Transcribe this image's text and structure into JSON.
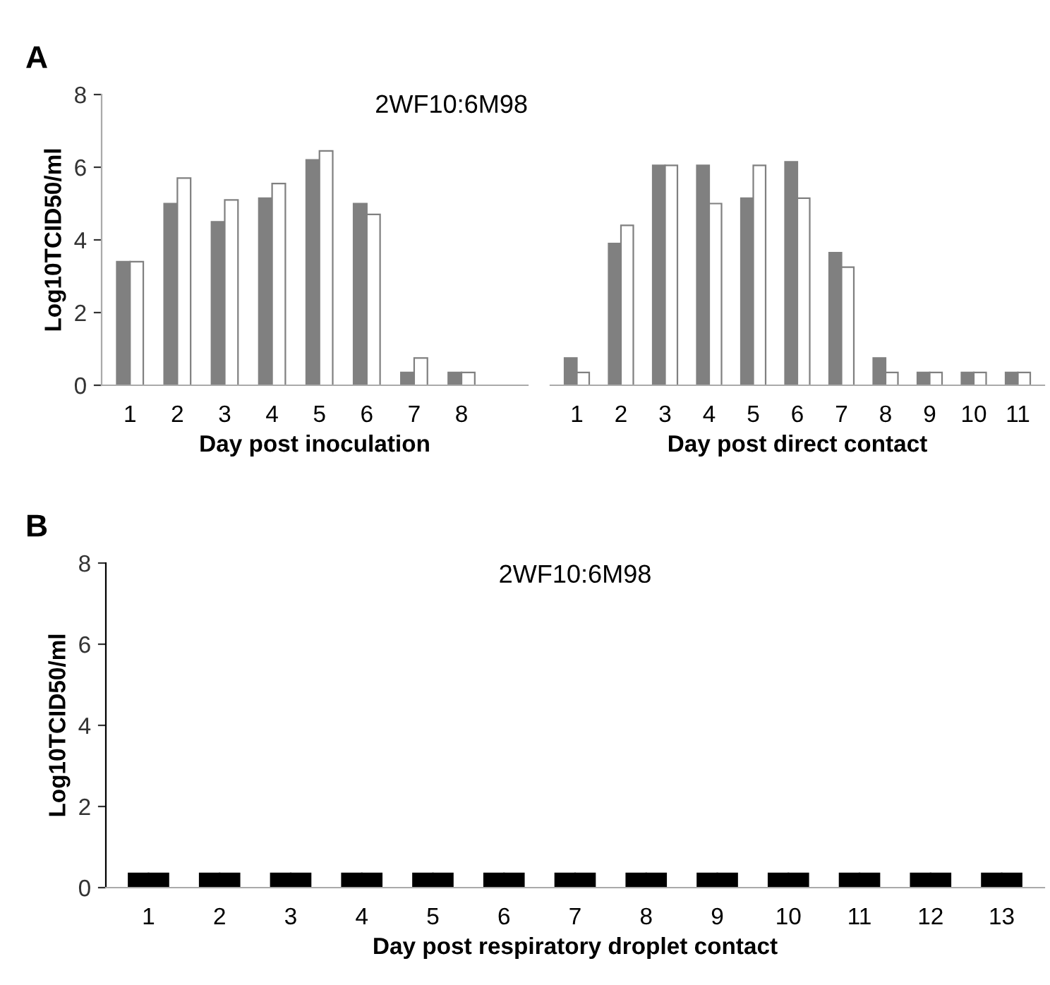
{
  "chart_data": [
    {
      "type": "bar",
      "title": "2WF10:6M98",
      "xlabel": "Day post inoculation",
      "ylabel": "Log10TCID50/ml",
      "annotations": [
        "A"
      ],
      "categories": [
        "1",
        "2",
        "3",
        "4",
        "5",
        "6",
        "7",
        "8"
      ],
      "series": [
        {
          "color": "#808080",
          "values": [
            3.4,
            5.0,
            4.5,
            5.15,
            6.2,
            5.0,
            0.35,
            0.35
          ]
        },
        {
          "color": "#ffffff",
          "values": [
            3.4,
            5.7,
            5.1,
            5.55,
            6.45,
            4.7,
            0.75,
            0.35
          ]
        }
      ],
      "ylim": [
        0,
        8
      ],
      "yticks": [
        0,
        2,
        4,
        6,
        8
      ]
    },
    {
      "type": "bar",
      "xlabel": "Day post direct contact",
      "categories": [
        "1",
        "2",
        "3",
        "4",
        "5",
        "6",
        "7",
        "8",
        "9",
        "10",
        "11"
      ],
      "series": [
        {
          "color": "#808080",
          "values": [
            0.75,
            3.9,
            6.05,
            6.05,
            5.15,
            6.15,
            3.65,
            0.75,
            0.35,
            0.35,
            0.35
          ]
        },
        {
          "color": "#ffffff",
          "values": [
            0.35,
            4.4,
            6.05,
            5.0,
            6.05,
            5.15,
            3.25,
            0.35,
            0.35,
            0.35,
            0.35
          ]
        }
      ],
      "ylim": [
        0,
        8
      ],
      "tick_labels": "x"
    },
    {
      "type": "bar",
      "title": "2WF10:6M98",
      "xlabel": "Day post respiratory droplet contact",
      "ylabel": "Log10TCID50/ml",
      "annotations": [
        "B"
      ],
      "categories": [
        "1",
        "2",
        "3",
        "4",
        "5",
        "6",
        "7",
        "8",
        "9",
        "10",
        "11",
        "12",
        "13"
      ],
      "series": [
        {
          "color": "#000000",
          "values": [
            0.35,
            0.35,
            0.35,
            0.35,
            0.35,
            0.35,
            0.35,
            0.35,
            0.35,
            0.35,
            0.35,
            0.35,
            0.35
          ]
        },
        {
          "color": "#000000",
          "values": [
            0.35,
            0.35,
            0.35,
            0.35,
            0.35,
            0.35,
            0.35,
            0.35,
            0.35,
            0.35,
            0.35,
            0.35,
            0.35
          ]
        }
      ],
      "ylim": [
        0,
        8
      ],
      "yticks": [
        0,
        2,
        4,
        6,
        8
      ]
    }
  ]
}
